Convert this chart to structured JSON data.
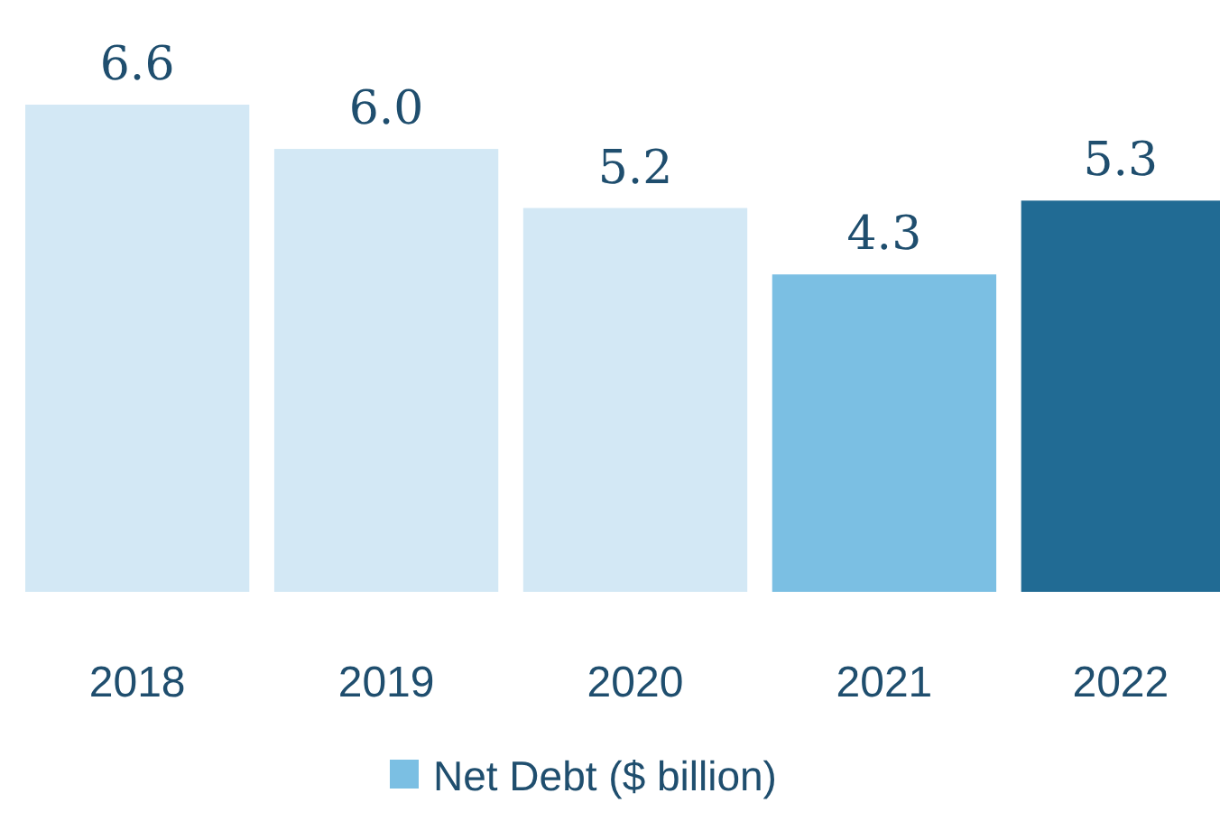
{
  "chart_data": {
    "type": "bar",
    "categories": [
      "2018",
      "2019",
      "2020",
      "2021",
      "2022"
    ],
    "series": [
      {
        "name": "Net Debt ($ billion)",
        "color": "#7bbfe3",
        "colors": [
          "#d3e8f5",
          "#d3e8f5",
          "#d3e8f5",
          "#7bbfe3",
          "#216b94"
        ],
        "values": [
          6.6,
          6.0,
          5.2,
          4.3,
          5.3
        ],
        "value_labels": [
          "6.6",
          "6.0",
          "5.2",
          "4.3",
          "5.3"
        ]
      }
    ],
    "legend": "bottom"
  }
}
